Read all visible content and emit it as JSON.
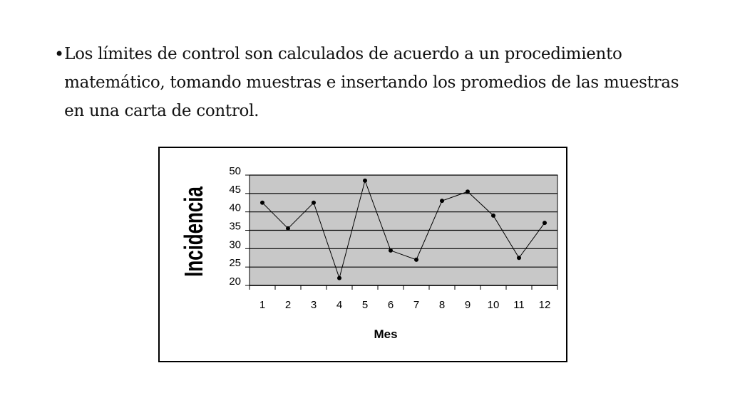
{
  "slide": {
    "bullet_symbol": "•",
    "bullet_text": "Los límites de control son calculados de acuerdo a un procedimiento matemático, tomando muestras e insertando los promedios de las muestras en una carta de control."
  },
  "chart_data": {
    "type": "line",
    "title": "",
    "xlabel": "Mes",
    "ylabel": "Incidencia",
    "categories": [
      "1",
      "2",
      "3",
      "4",
      "5",
      "6",
      "7",
      "8",
      "9",
      "10",
      "11",
      "12"
    ],
    "series": [
      {
        "values": [
          42.5,
          35.5,
          42.5,
          22,
          48.5,
          29.5,
          27,
          43,
          45.5,
          39,
          27.5,
          37
        ]
      }
    ],
    "yticks": [
      "50",
      "45",
      "40",
      "35",
      "30",
      "25",
      "20"
    ],
    "ylim": [
      20,
      50
    ],
    "grid": true,
    "colors": {
      "plot_bg": "#c8c8c8",
      "line": "#000000",
      "grid": "#000000"
    }
  }
}
